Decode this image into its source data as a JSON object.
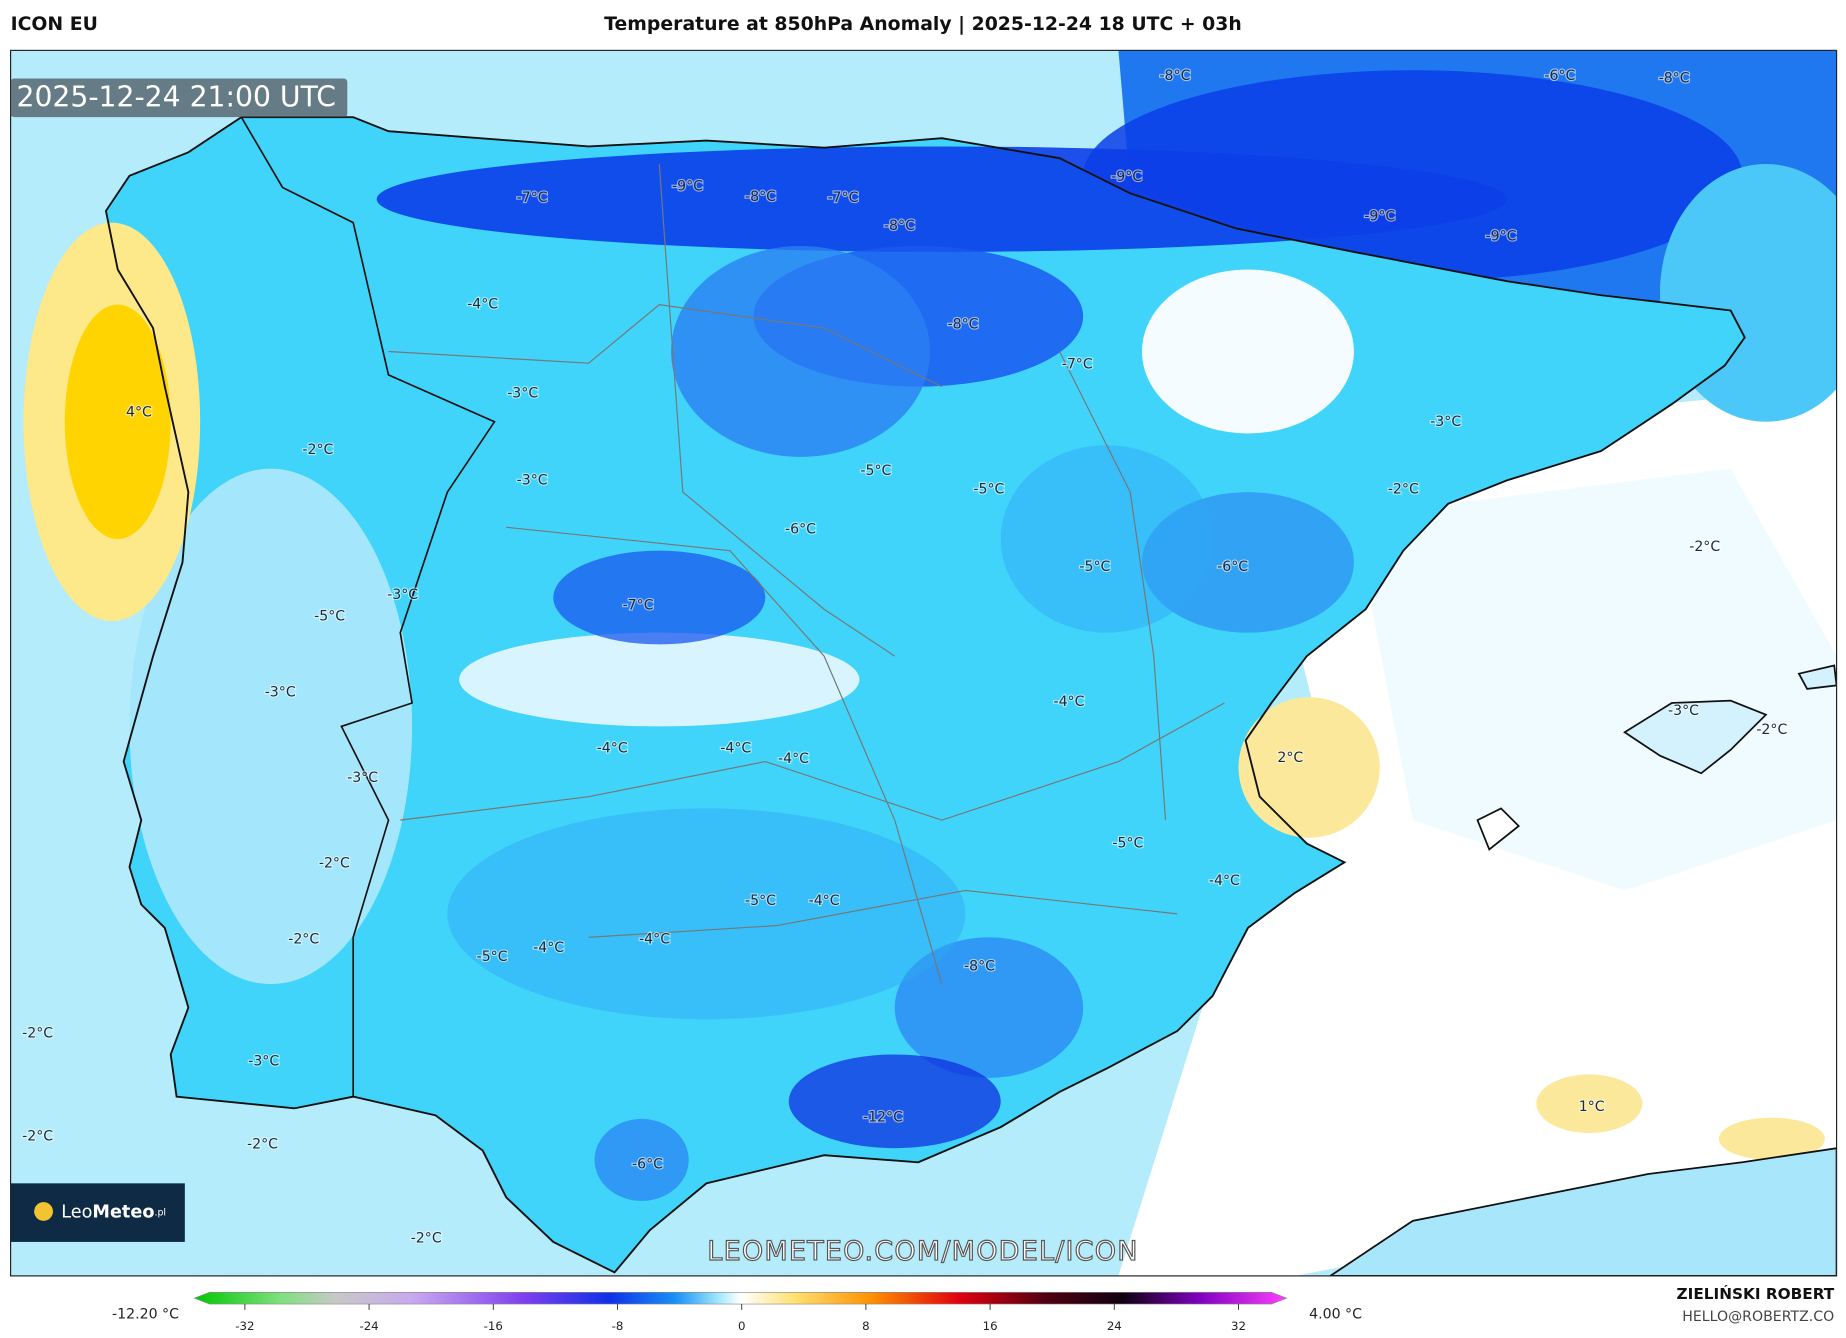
{
  "header": {
    "model": "ICON EU",
    "title": "Temperature at 850hPa Anomaly | 2025-12-24 18 UTC + 03h"
  },
  "timestamp": "2025-12-24 21:00 UTC",
  "map_labels": [
    "-8°C",
    "-6°C",
    "-8°C",
    "-7°C",
    "-9°C",
    "-8°C",
    "-7°C",
    "-8°C",
    "-9°C",
    "-9°C",
    "-9°C",
    "-4°C",
    "-8°C",
    "-7°C",
    "4°C",
    "-3°C",
    "-3°C",
    "-2°C",
    "-3°C",
    "-5°C",
    "-5°C",
    "-2°C",
    "-6°C",
    "-2°C",
    "-5°C",
    "-6°C",
    "-3°C",
    "-7°C",
    "-5°C",
    "-3°C",
    "-4°C",
    "-3°C",
    "-2°C",
    "-4°C",
    "-4°C",
    "-4°C",
    "2°C",
    "-3°C",
    "-5°C",
    "-2°C",
    "-4°C",
    "-5°C",
    "-4°C",
    "-2°C",
    "-4°C",
    "-4°C",
    "-5°C",
    "-8°C",
    "-2°C",
    "-3°C",
    "1°C",
    "-12°C",
    "-2°C",
    "-2°C",
    "-6°C",
    "-2°C"
  ],
  "logo": {
    "part1": "Leo",
    "part2": "Meteo",
    "suffix": ".pl"
  },
  "watermark": "LEOMETEO.COM/MODEL/ICON",
  "colorbar": {
    "min_label": "-12.20 °C",
    "max_label": "4.00 °C",
    "range": [
      -32,
      32
    ],
    "ticks": [
      -32,
      -24,
      -16,
      -8,
      0,
      8,
      16,
      24,
      32
    ]
  },
  "credits": {
    "author": "ZIELIŃSKI ROBERT",
    "email": "HELLO@ROBERTZ.CO"
  }
}
